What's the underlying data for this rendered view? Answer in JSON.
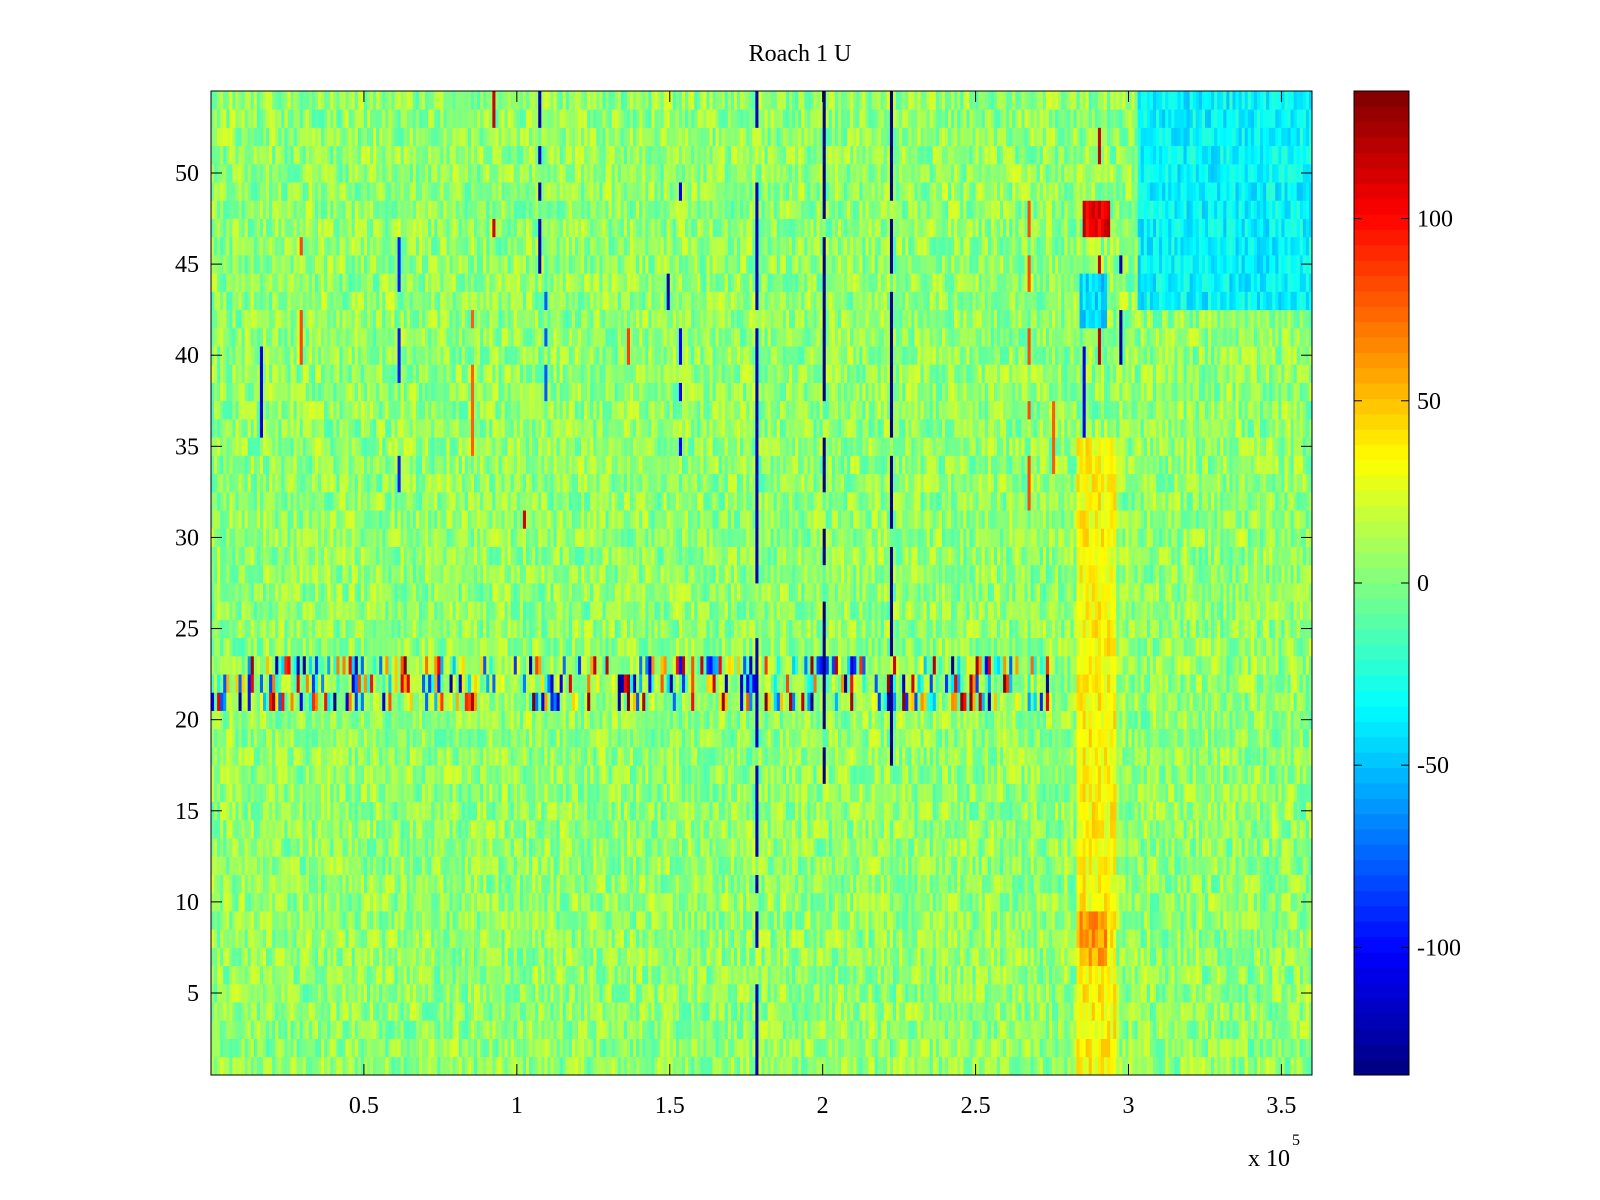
{
  "chart_data": {
    "type": "heatmap",
    "title": "Roach 1 U",
    "xlabel": "",
    "ylabel": "",
    "xlim": [
      0,
      360000
    ],
    "ylim": [
      0.5,
      54.5
    ],
    "x_ticks": [
      50000,
      100000,
      150000,
      200000,
      250000,
      300000,
      350000
    ],
    "x_tick_labels": [
      "0.5",
      "1",
      "1.5",
      "2",
      "2.5",
      "3",
      "3.5"
    ],
    "x_exponent_base": "x 10",
    "x_exponent_power": "5",
    "y_ticks": [
      5,
      10,
      15,
      20,
      25,
      30,
      35,
      40,
      45,
      50
    ],
    "y_tick_labels": [
      "5",
      "10",
      "15",
      "20",
      "25",
      "30",
      "35",
      "40",
      "45",
      "50"
    ],
    "rows": 54,
    "colormap": "jet",
    "clim": [
      -135,
      135
    ],
    "colorbar": {
      "ticks": [
        -100,
        -50,
        0,
        50,
        100
      ],
      "tick_labels": [
        "-100",
        "-50",
        "0",
        "50",
        "100"
      ],
      "placement": "right"
    },
    "background_value": 5,
    "features": [
      {
        "note": "strong alternating band",
        "rows": [
          21,
          23
        ],
        "x_range": [
          0,
          275000
        ],
        "value_range": [
          -135,
          135
        ]
      },
      {
        "note": "hot block",
        "rows": [
          47,
          48
        ],
        "x_range": [
          285000,
          293000
        ],
        "value": 110
      },
      {
        "note": "cold block",
        "rows": [
          42,
          44
        ],
        "x_range": [
          284000,
          292000
        ],
        "value": -45
      },
      {
        "note": "warm column",
        "rows": [
          1,
          35
        ],
        "x_range": [
          283000,
          295000
        ],
        "value": 35
      },
      {
        "note": "warm patch",
        "rows": [
          7,
          9
        ],
        "x_range": [
          284000,
          292000
        ],
        "value": 60
      },
      {
        "note": "cool region",
        "rows": [
          43,
          54
        ],
        "x_range": [
          303000,
          360000
        ],
        "value": -35
      },
      {
        "note": "dark vertical line",
        "rows": [
          16,
          54
        ],
        "x": 200000,
        "value": -135
      },
      {
        "note": "dark vertical line",
        "rows": [
          18,
          54
        ],
        "x": 222000,
        "value": -130
      },
      {
        "note": "dark vertical line",
        "rows": [
          1,
          54
        ],
        "x": 178000,
        "value": -120
      }
    ],
    "grid": false
  },
  "colors": {
    "axis": "#000000",
    "background": "#ffffff"
  }
}
